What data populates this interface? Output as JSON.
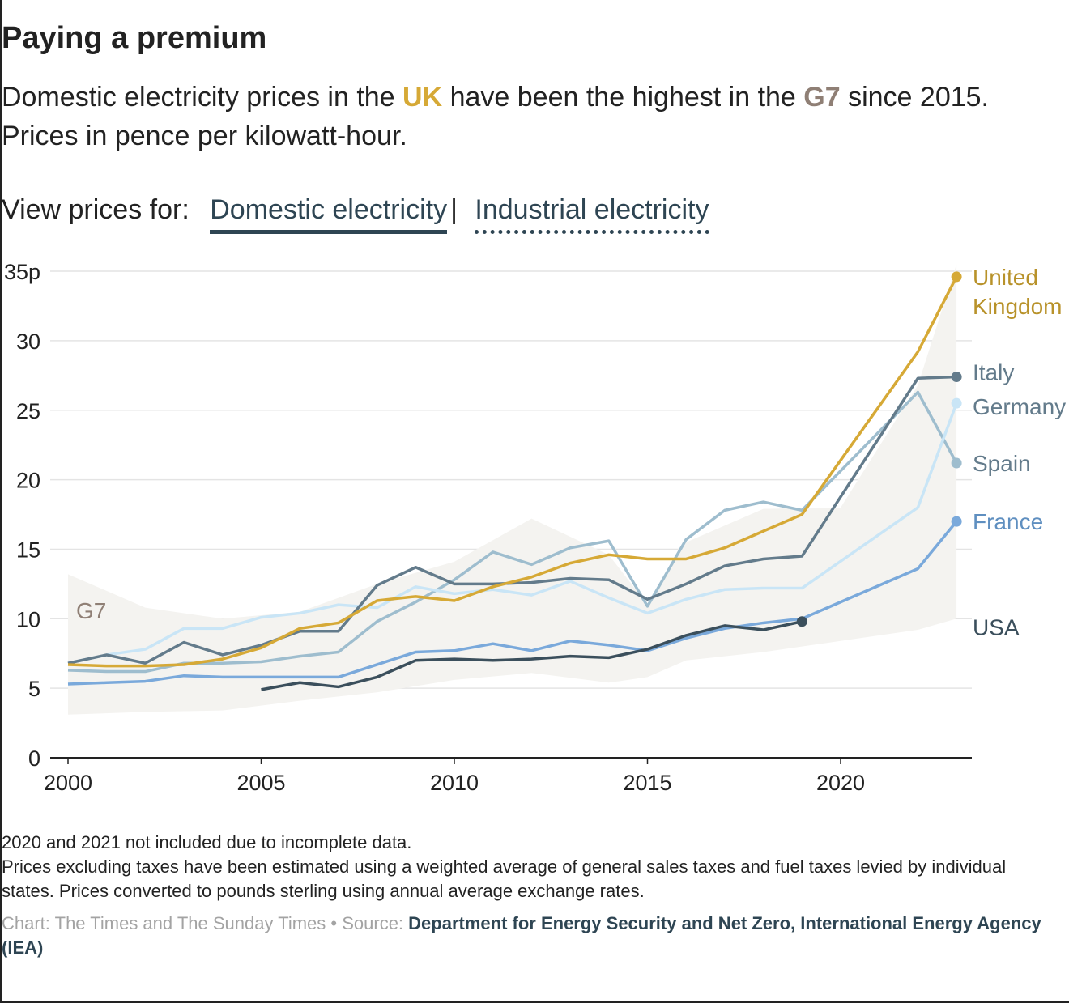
{
  "header": {
    "title": "Paying a premium",
    "subtitle_part1": "Domestic electricity prices in the ",
    "subtitle_uk": "UK",
    "subtitle_part2": " have been the highest in the ",
    "subtitle_g7": "G7",
    "subtitle_part3": " since 2015.",
    "subtitle_line2": "Prices in pence per kilowatt-hour."
  },
  "toggle": {
    "prompt": "View prices for:",
    "options": [
      "Domestic electricity",
      "Industrial electricity"
    ],
    "separator": "|",
    "selected": "Domestic electricity"
  },
  "chart_data": {
    "type": "line",
    "title": "Paying a premium",
    "xlabel": "",
    "ylabel": "",
    "xlim": [
      2000,
      2023
    ],
    "ylim": [
      0,
      35
    ],
    "x_ticks": [
      2000,
      2005,
      2010,
      2015,
      2020
    ],
    "y_ticks": [
      0,
      5,
      10,
      15,
      20,
      25,
      30,
      35
    ],
    "y_tick_labels": [
      "0",
      "5",
      "10",
      "15",
      "20",
      "25",
      "30",
      "35p"
    ],
    "grid": true,
    "legend": "direct labels at line ends",
    "band": {
      "name": "G7",
      "color": "#f4f3f0",
      "years": [
        2000,
        2002,
        2004,
        2006,
        2008,
        2010,
        2012,
        2014,
        2015,
        2016,
        2018,
        2020,
        2022,
        2023
      ],
      "upper": [
        13.2,
        10.8,
        10.0,
        10.5,
        12.5,
        14.1,
        17.2,
        14.6,
        11.0,
        15.5,
        17.9,
        18.0,
        26.8,
        35.5
      ],
      "lower": [
        3.1,
        3.3,
        3.4,
        4.1,
        4.7,
        5.6,
        6.1,
        5.4,
        5.8,
        7.0,
        7.6,
        8.4,
        9.2,
        10.0
      ]
    },
    "series": [
      {
        "name": "Spain",
        "color": "#9ebdce",
        "points": [
          [
            2000,
            6.3
          ],
          [
            2001,
            6.2
          ],
          [
            2002,
            6.2
          ],
          [
            2003,
            6.8
          ],
          [
            2004,
            6.8
          ],
          [
            2005,
            6.9
          ],
          [
            2006,
            7.3
          ],
          [
            2007,
            7.6
          ],
          [
            2008,
            9.8
          ],
          [
            2009,
            11.2
          ],
          [
            2010,
            12.8
          ],
          [
            2011,
            14.8
          ],
          [
            2012,
            13.9
          ],
          [
            2013,
            15.1
          ],
          [
            2014,
            15.6
          ],
          [
            2015,
            10.9
          ],
          [
            2016,
            15.7
          ],
          [
            2017,
            17.8
          ],
          [
            2018,
            18.4
          ],
          [
            2019,
            17.8
          ],
          [
            2022,
            26.3
          ],
          [
            2023,
            21.2
          ]
        ]
      },
      {
        "name": "Germany",
        "color": "#c9e5f6",
        "points": [
          [
            2000,
            6.8
          ],
          [
            2001,
            7.4
          ],
          [
            2002,
            7.8
          ],
          [
            2003,
            9.3
          ],
          [
            2004,
            9.3
          ],
          [
            2005,
            10.1
          ],
          [
            2006,
            10.4
          ],
          [
            2007,
            11.0
          ],
          [
            2008,
            10.8
          ],
          [
            2009,
            12.3
          ],
          [
            2010,
            11.8
          ],
          [
            2011,
            12.1
          ],
          [
            2012,
            11.7
          ],
          [
            2013,
            12.7
          ],
          [
            2014,
            11.5
          ],
          [
            2015,
            10.4
          ],
          [
            2016,
            11.4
          ],
          [
            2017,
            12.1
          ],
          [
            2018,
            12.2
          ],
          [
            2019,
            12.2
          ],
          [
            2022,
            18.0
          ],
          [
            2023,
            25.5
          ]
        ]
      },
      {
        "name": "France",
        "color": "#7aa9db",
        "points": [
          [
            2000,
            5.3
          ],
          [
            2001,
            5.4
          ],
          [
            2002,
            5.5
          ],
          [
            2003,
            5.9
          ],
          [
            2004,
            5.8
          ],
          [
            2005,
            5.8
          ],
          [
            2006,
            5.8
          ],
          [
            2007,
            5.8
          ],
          [
            2008,
            6.7
          ],
          [
            2009,
            7.6
          ],
          [
            2010,
            7.7
          ],
          [
            2011,
            8.2
          ],
          [
            2012,
            7.7
          ],
          [
            2013,
            8.4
          ],
          [
            2014,
            8.1
          ],
          [
            2015,
            7.7
          ],
          [
            2016,
            8.6
          ],
          [
            2017,
            9.3
          ],
          [
            2018,
            9.7
          ],
          [
            2019,
            10.0
          ],
          [
            2022,
            13.6
          ],
          [
            2023,
            17.0
          ]
        ]
      },
      {
        "name": "USA",
        "color": "#3b4f5c",
        "points": [
          [
            2005,
            4.9
          ],
          [
            2006,
            5.4
          ],
          [
            2007,
            5.1
          ],
          [
            2008,
            5.8
          ],
          [
            2009,
            7.0
          ],
          [
            2010,
            7.1
          ],
          [
            2011,
            7.0
          ],
          [
            2012,
            7.1
          ],
          [
            2013,
            7.3
          ],
          [
            2014,
            7.2
          ],
          [
            2015,
            7.8
          ],
          [
            2016,
            8.8
          ],
          [
            2017,
            9.5
          ],
          [
            2018,
            9.2
          ],
          [
            2019,
            9.8
          ]
        ]
      },
      {
        "name": "Italy",
        "color": "#637b8b",
        "points": [
          [
            2000,
            6.8
          ],
          [
            2001,
            7.4
          ],
          [
            2002,
            6.8
          ],
          [
            2003,
            8.3
          ],
          [
            2004,
            7.4
          ],
          [
            2005,
            8.1
          ],
          [
            2006,
            9.1
          ],
          [
            2007,
            9.1
          ],
          [
            2008,
            12.4
          ],
          [
            2009,
            13.7
          ],
          [
            2010,
            12.5
          ],
          [
            2011,
            12.5
          ],
          [
            2012,
            12.6
          ],
          [
            2013,
            12.9
          ],
          [
            2014,
            12.8
          ],
          [
            2015,
            11.4
          ],
          [
            2016,
            12.5
          ],
          [
            2017,
            13.8
          ],
          [
            2018,
            14.3
          ],
          [
            2019,
            14.5
          ],
          [
            2022,
            27.3
          ],
          [
            2023,
            27.4
          ]
        ]
      },
      {
        "name": "United Kingdom",
        "color": "#d6a936",
        "points": [
          [
            2000,
            6.7
          ],
          [
            2001,
            6.6
          ],
          [
            2002,
            6.6
          ],
          [
            2003,
            6.7
          ],
          [
            2004,
            7.1
          ],
          [
            2005,
            7.9
          ],
          [
            2006,
            9.3
          ],
          [
            2007,
            9.7
          ],
          [
            2008,
            11.3
          ],
          [
            2009,
            11.6
          ],
          [
            2010,
            11.3
          ],
          [
            2011,
            12.3
          ],
          [
            2012,
            13.0
          ],
          [
            2013,
            14.0
          ],
          [
            2014,
            14.6
          ],
          [
            2015,
            14.3
          ],
          [
            2016,
            14.3
          ],
          [
            2017,
            15.1
          ],
          [
            2018,
            16.3
          ],
          [
            2019,
            17.5
          ],
          [
            2022,
            29.2
          ],
          [
            2023,
            34.6
          ]
        ]
      }
    ],
    "labels": [
      {
        "series": "United Kingdom",
        "lines": [
          "United",
          "Kingdom"
        ],
        "color": "#b8922a"
      },
      {
        "series": "Italy",
        "lines": [
          "Italy"
        ],
        "color": "#637b8b"
      },
      {
        "series": "Germany",
        "lines": [
          "Germany"
        ],
        "color": "#637b8b"
      },
      {
        "series": "Spain",
        "lines": [
          "Spain"
        ],
        "color": "#637b8b"
      },
      {
        "series": "France",
        "lines": [
          "France"
        ],
        "color": "#5f8fc0"
      },
      {
        "series": "USA",
        "lines": [
          "USA"
        ],
        "color": "#3b4f5c"
      }
    ]
  },
  "notes": {
    "line1": "2020 and 2021 not included due to incomplete data.",
    "line2": "Prices excluding taxes have been estimated using a weighted average of general sales taxes and fuel taxes levied by individual states. Prices converted to pounds sterling using annual average exchange rates."
  },
  "credit": {
    "chart": "Chart: The Times and The Sunday Times",
    "dot": " • ",
    "source_label": "Source: ",
    "source": "Department for Energy Security and Net Zero, International Energy Agency (IEA)"
  }
}
